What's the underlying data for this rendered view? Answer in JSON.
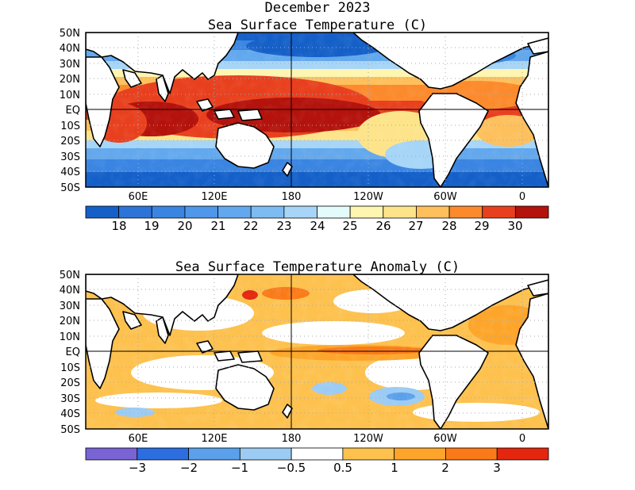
{
  "figure": {
    "title_line1": "December 2023",
    "panels": [
      {
        "title": "Sea Surface Temperature (C)",
        "lat_labels": [
          "50N",
          "40N",
          "30N",
          "20N",
          "10N",
          "EQ",
          "10S",
          "20S",
          "30S",
          "40S",
          "50S"
        ],
        "lon_labels": [
          "60E",
          "120E",
          "180",
          "120W",
          "60W",
          "0"
        ],
        "colorbar": {
          "colors": [
            "#1560c8",
            "#2c74d8",
            "#3a85e2",
            "#4e97ea",
            "#62a8ee",
            "#7cbcf2",
            "#a6d5f7",
            "#e4fbfc",
            "#fdf5b0",
            "#fde48a",
            "#fdc05c",
            "#fc8a2c",
            "#e8401e",
            "#b4120c"
          ],
          "labels": [
            "18",
            "19",
            "20",
            "21",
            "22",
            "23",
            "24",
            "25",
            "26",
            "27",
            "28",
            "29",
            "30"
          ]
        }
      },
      {
        "title": "Sea Surface Temperature Anomaly (C)",
        "lat_labels": [
          "50N",
          "40N",
          "30N",
          "20N",
          "10N",
          "EQ",
          "10S",
          "20S",
          "30S",
          "40S",
          "50S"
        ],
        "lon_labels": [
          "60E",
          "120E",
          "180",
          "120W",
          "60W",
          "0"
        ],
        "colorbar": {
          "colors": [
            "#7a63d4",
            "#2c6ee0",
            "#5aa0ea",
            "#9ccbf4",
            "#ffffff",
            "#fdc14e",
            "#fda52a",
            "#fb7a18",
            "#e4260e"
          ],
          "labels": [
            "−3",
            "−2",
            "−1",
            "−0.5",
            "0.5",
            "1",
            "2",
            "3"
          ]
        }
      }
    ]
  }
}
